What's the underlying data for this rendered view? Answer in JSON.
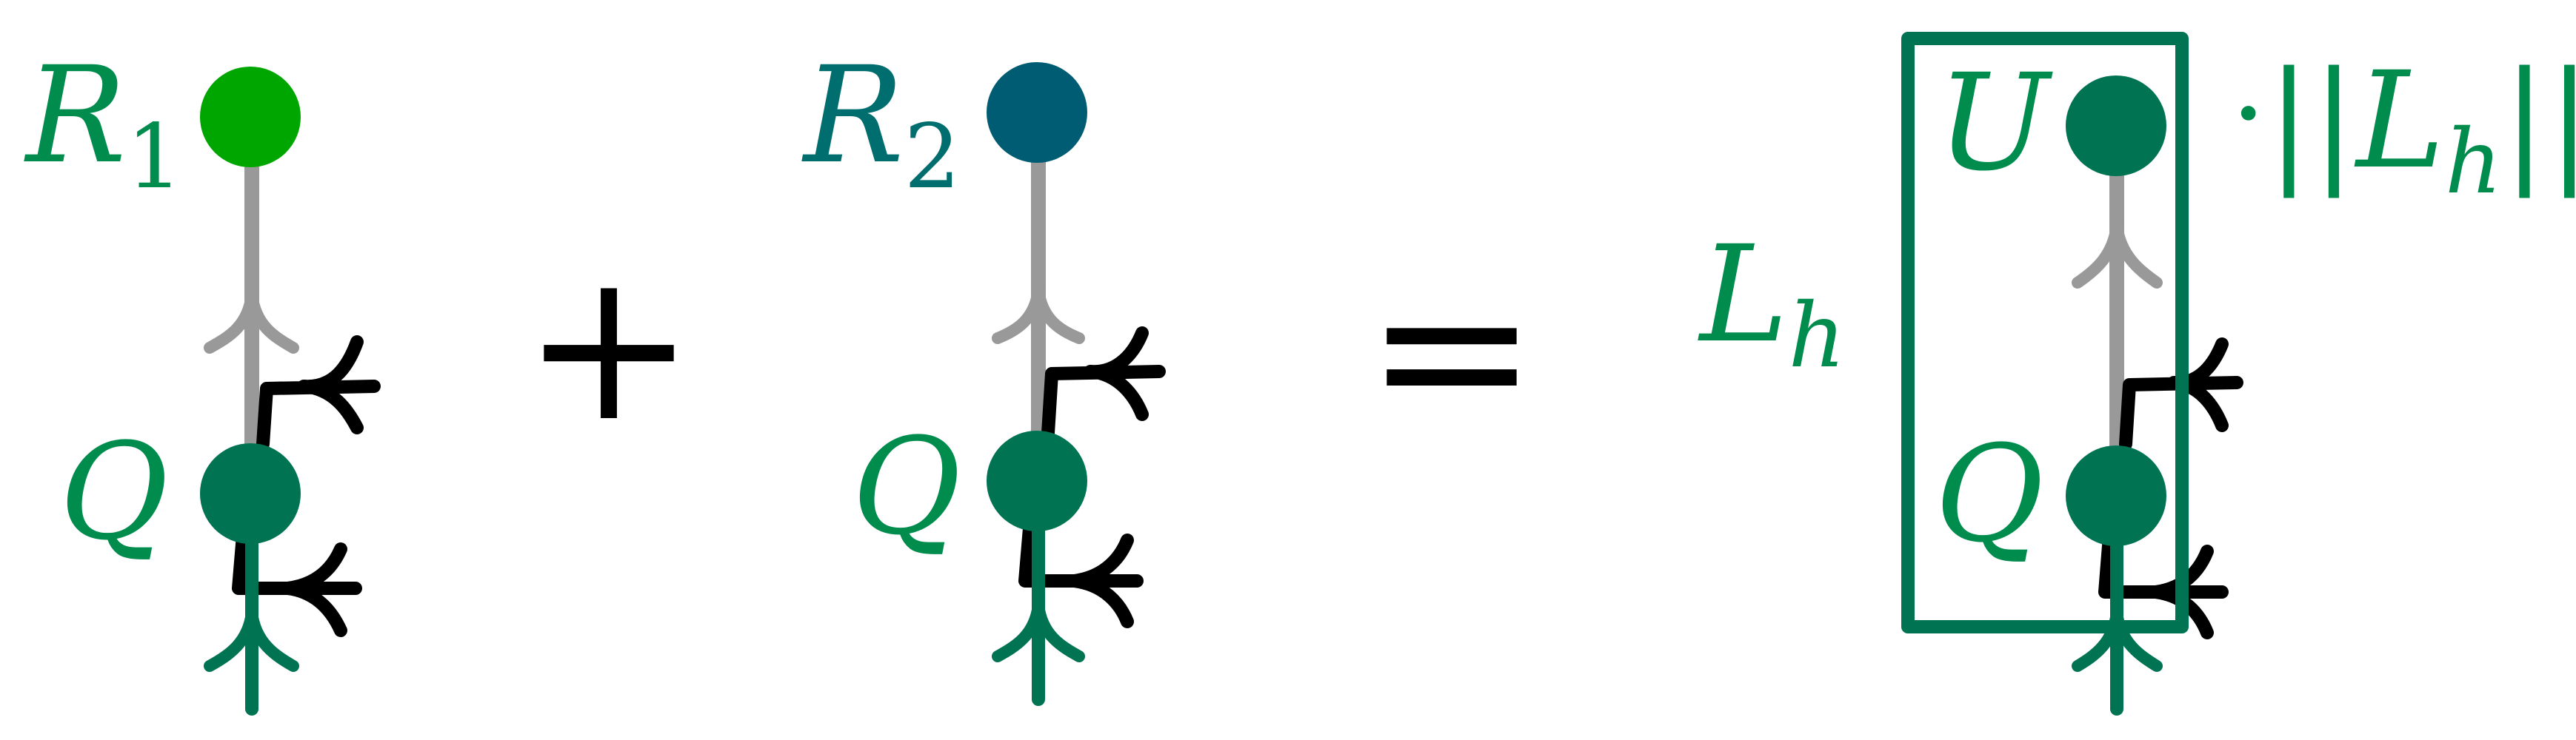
{
  "colors": {
    "r1": "#00A600",
    "r2": "#005C73",
    "q": "#007352",
    "label_green": "#008C4D",
    "label_teal": "#006E6E",
    "grey_wire": "#999999",
    "black_wire": "#000000",
    "box": "#007352"
  },
  "terms": {
    "r1": {
      "name": "R",
      "sub": "1"
    },
    "r2": {
      "name": "R",
      "sub": "2"
    },
    "q_left": "Q",
    "q_mid": "Q",
    "q_right": "Q",
    "u": "U"
  },
  "operators": {
    "plus": "+",
    "equals": "=",
    "dot": "·"
  },
  "rhs": {
    "l": {
      "name": "L",
      "sub": "h"
    },
    "norm": {
      "bars_left": "||",
      "name": "L",
      "sub": "h",
      "bars_right": "||"
    }
  }
}
